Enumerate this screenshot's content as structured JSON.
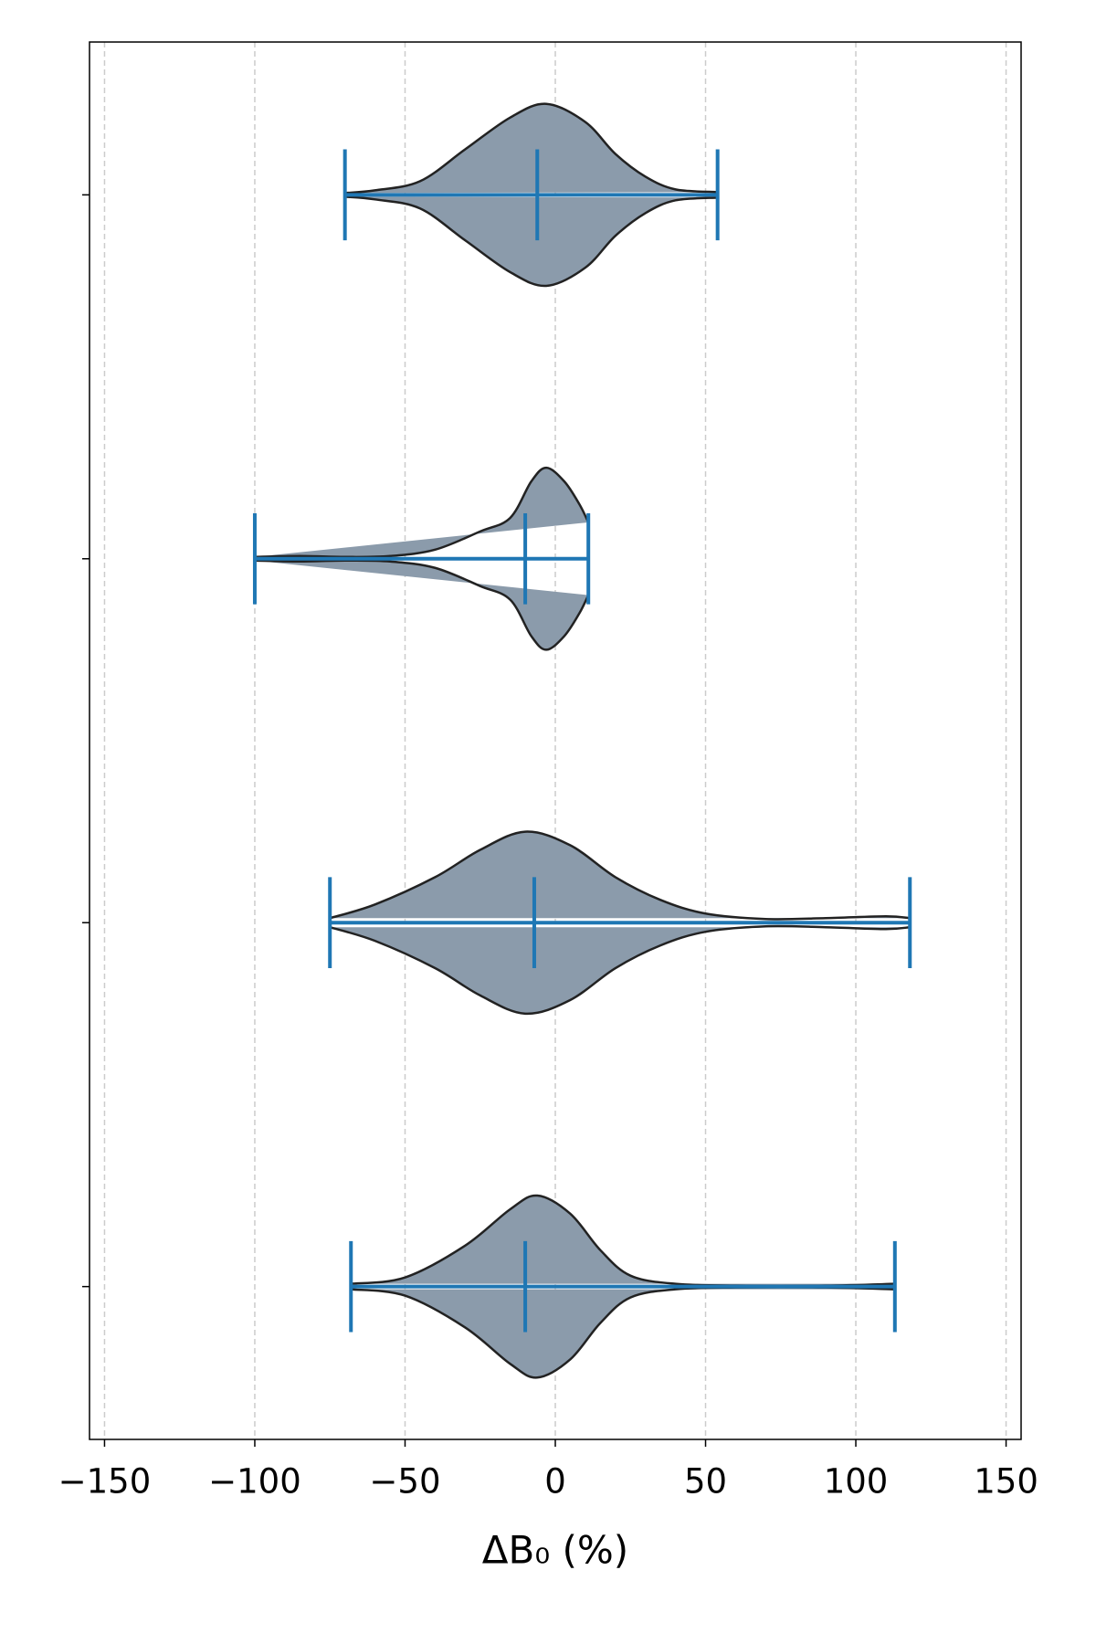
{
  "chart_data": {
    "type": "violin",
    "xlabel": "ΔB₀ (%)",
    "xlim": [
      -155,
      155
    ],
    "xticks": [
      {
        "value": -150,
        "label": "−150"
      },
      {
        "value": -100,
        "label": "−100"
      },
      {
        "value": -50,
        "label": "−50"
      },
      0,
      50,
      100,
      150
    ],
    "ylim": [
      0.58,
      4.42
    ],
    "grid": true,
    "categories": [
      null,
      null,
      null,
      null
    ],
    "fill_color": "#8b9bab",
    "edge_color": "#222222",
    "line_color": "#1f77b4",
    "violins": [
      {
        "min": -68,
        "max": 113,
        "median": -10,
        "density": {
          "x": [
            -68,
            -50,
            -30,
            -15,
            -6,
            5,
            15,
            25,
            40,
            60,
            90,
            113
          ],
          "width": [
            0.03,
            0.1,
            0.45,
            0.85,
            1.0,
            0.8,
            0.4,
            0.12,
            0.03,
            0.01,
            0.01,
            0.03
          ]
        }
      },
      {
        "min": -75,
        "max": 118,
        "median": -7,
        "density": {
          "x": [
            -75,
            -60,
            -40,
            -25,
            -10,
            5,
            20,
            35,
            50,
            70,
            90,
            110,
            118
          ],
          "width": [
            0.05,
            0.2,
            0.5,
            0.8,
            1.0,
            0.85,
            0.5,
            0.25,
            0.1,
            0.04,
            0.05,
            0.07,
            0.05
          ]
        }
      },
      {
        "min": -100,
        "max": 11,
        "median": -10,
        "density": {
          "x": [
            -100,
            -85,
            -70,
            -55,
            -40,
            -25,
            -15,
            -8,
            -3,
            3,
            8,
            11
          ],
          "width": [
            0.02,
            0.03,
            0.02,
            0.03,
            0.1,
            0.3,
            0.45,
            0.85,
            1.0,
            0.85,
            0.6,
            0.4
          ]
        }
      },
      {
        "min": -70,
        "max": 54,
        "median": -6,
        "density": {
          "x": [
            -70,
            -60,
            -45,
            -30,
            -15,
            -3,
            10,
            20,
            30,
            40,
            54
          ],
          "width": [
            0.02,
            0.05,
            0.15,
            0.5,
            0.85,
            1.0,
            0.8,
            0.45,
            0.2,
            0.06,
            0.03
          ]
        }
      }
    ]
  }
}
